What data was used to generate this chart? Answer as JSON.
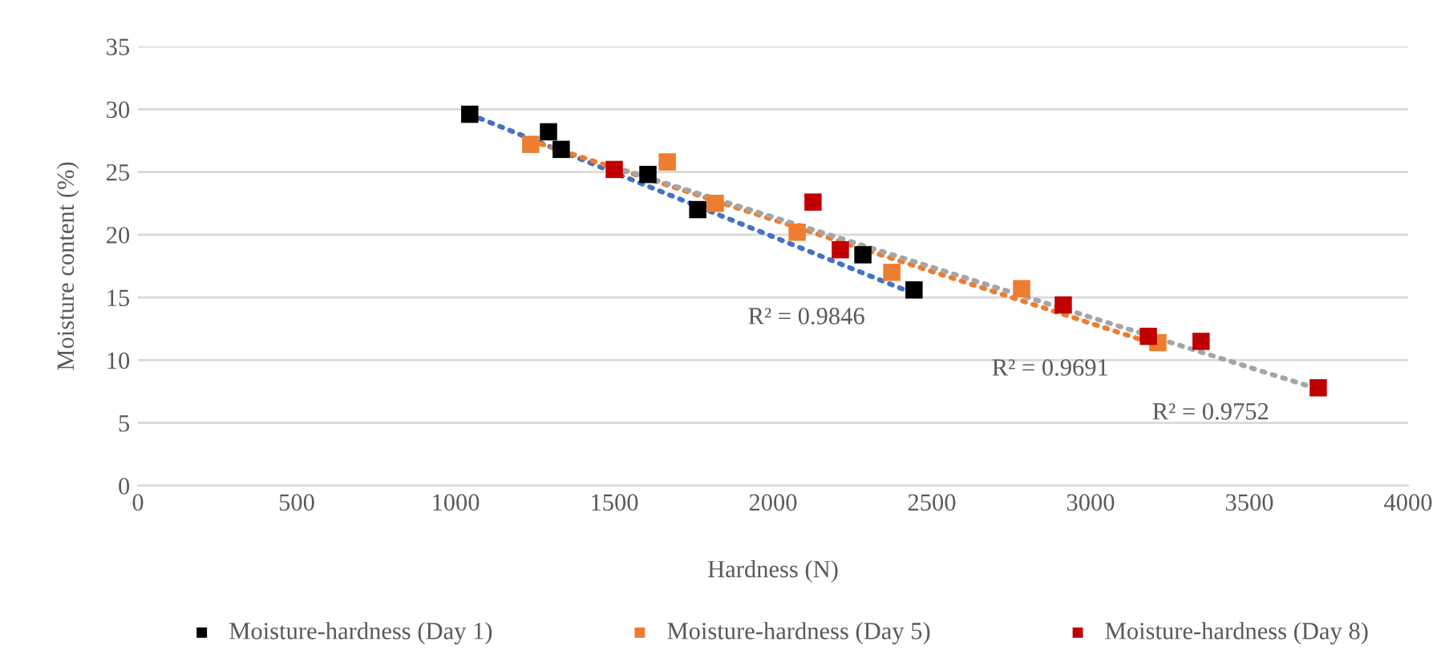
{
  "chart_data": {
    "type": "scatter",
    "xlabel": "Hardness (N)",
    "ylabel": "Moisture content (%)",
    "xlim": [
      0,
      4000
    ],
    "xticks": [
      0,
      500,
      1000,
      1500,
      2000,
      2500,
      3000,
      3500,
      4000
    ],
    "ylim": [
      0,
      35
    ],
    "yticks": [
      0,
      5,
      10,
      15,
      20,
      25,
      30,
      35
    ],
    "grid": "y",
    "legend": "bottom",
    "marker": "square",
    "series": [
      {
        "name": "Moisture-hardness (Day 1)",
        "color": "#000000",
        "x": [
          1045,
          1293,
          1333,
          1606,
          1763,
          2283,
          2444
        ],
        "values": [
          29.6,
          28.2,
          26.8,
          24.8,
          22.0,
          18.4,
          15.6
        ]
      },
      {
        "name": "Moisture-hardness (Day 5)",
        "color": "#ed7d31",
        "x": [
          1237,
          1667,
          1818,
          2076,
          2374,
          2783,
          3212
        ],
        "values": [
          27.2,
          25.8,
          22.5,
          20.2,
          17.0,
          15.7,
          11.4
        ]
      },
      {
        "name": "Moisture-hardness (Day 8)",
        "color": "#c00000",
        "x": [
          1500,
          2126,
          2212,
          2914,
          3182,
          3348,
          3717
        ],
        "values": [
          25.2,
          22.6,
          18.8,
          14.4,
          11.9,
          11.5,
          7.8
        ]
      },
      {
        "type": "line",
        "line_style": "dotted",
        "marker": "none",
        "color": "#4472c4",
        "x": [
          1045,
          2444
        ],
        "values": [
          29.6,
          15.3
        ]
      },
      {
        "type": "line",
        "line_style": "dotted",
        "marker": "none",
        "color": "#ed7d31",
        "x": [
          1237,
          3212
        ],
        "values": [
          27.5,
          11.2
        ]
      },
      {
        "type": "line",
        "line_style": "dotted",
        "marker": "none",
        "color": "#a5a5a5",
        "x": [
          1500,
          3717
        ],
        "values": [
          25.4,
          7.7
        ]
      }
    ],
    "annotations": [
      "R² = 0.9846",
      "R² = 0.9691",
      "R² = 0.9752"
    ]
  }
}
